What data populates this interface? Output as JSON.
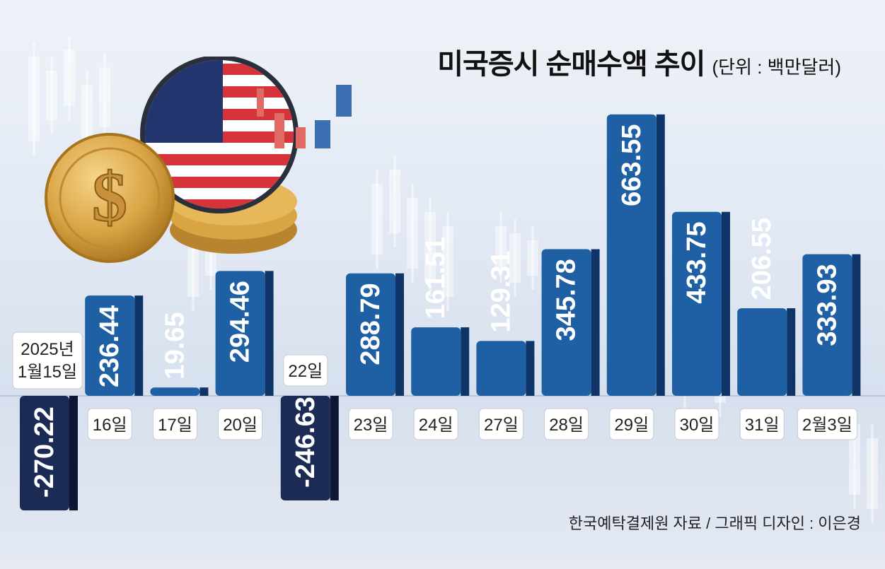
{
  "title": "미국증시 순매수액 추이",
  "unit": "(단위 : 백만달러)",
  "source": "한국예탁결제원 자료 / 그래픽 디자인 : 이은경",
  "chart_data": {
    "type": "bar",
    "categories": [
      "2025년 1월15일",
      "16일",
      "17일",
      "20일",
      "22일",
      "23일",
      "24일",
      "27일",
      "28일",
      "29일",
      "30일",
      "31일",
      "2월3일"
    ],
    "values": [
      -270.22,
      236.44,
      19.65,
      294.46,
      -246.63,
      288.79,
      161.51,
      129.31,
      345.78,
      663.55,
      433.75,
      206.55,
      333.93
    ],
    "value_labels": [
      "-270.22",
      "236.44",
      "19.65",
      "294.46",
      "-246.63",
      "288.79",
      "161.51",
      "129.31",
      "345.78",
      "663.55",
      "433.75",
      "206.55",
      "333.93"
    ],
    "title": "미국증시 순매수액 추이",
    "ylabel": "",
    "xlabel": "",
    "ylim": [
      -280,
      680
    ],
    "colors": {
      "positive": "#1f5fa3",
      "negative": "#1c2b55",
      "positive_side": "#0f3568",
      "negative_side": "#0e1633"
    }
  }
}
